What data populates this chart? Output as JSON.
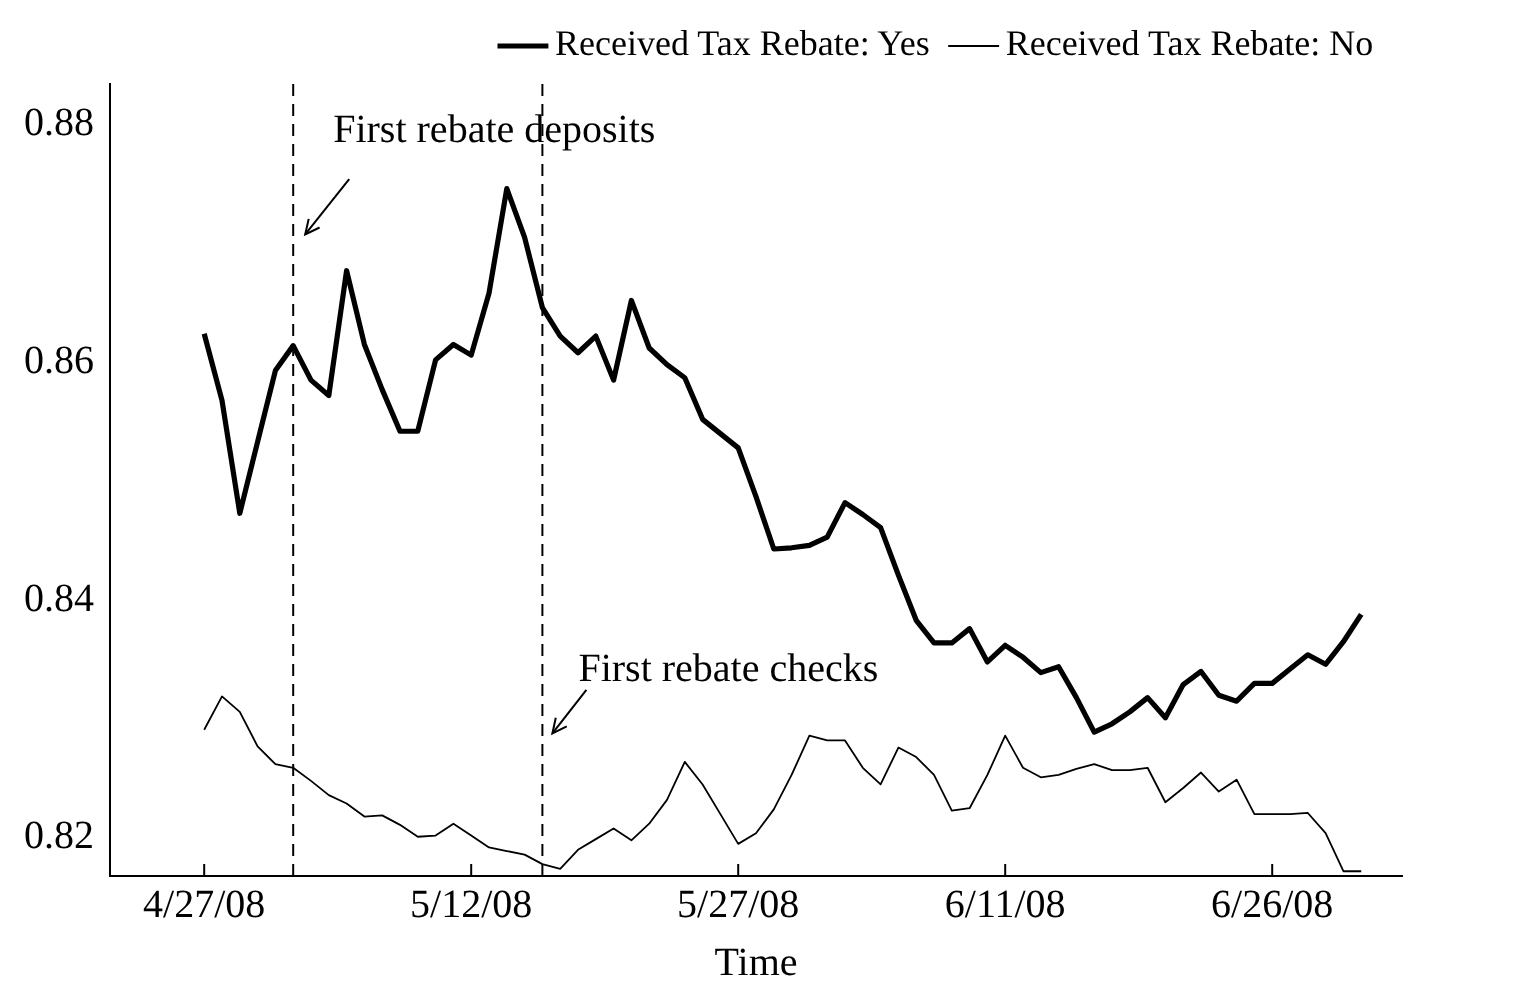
{
  "chart_data": {
    "type": "line",
    "xlabel": "Time",
    "x": [
      "2008-04-27",
      "2008-04-28",
      "2008-04-29",
      "2008-04-30",
      "2008-05-01",
      "2008-05-02",
      "2008-05-03",
      "2008-05-04",
      "2008-05-05",
      "2008-05-06",
      "2008-05-07",
      "2008-05-08",
      "2008-05-09",
      "2008-05-10",
      "2008-05-11",
      "2008-05-12",
      "2008-05-13",
      "2008-05-14",
      "2008-05-15",
      "2008-05-16",
      "2008-05-17",
      "2008-05-18",
      "2008-05-19",
      "2008-05-20",
      "2008-05-21",
      "2008-05-22",
      "2008-05-23",
      "2008-05-24",
      "2008-05-25",
      "2008-05-26",
      "2008-05-27",
      "2008-05-28",
      "2008-05-29",
      "2008-05-30",
      "2008-05-31",
      "2008-06-01",
      "2008-06-02",
      "2008-06-03",
      "2008-06-04",
      "2008-06-05",
      "2008-06-06",
      "2008-06-07",
      "2008-06-08",
      "2008-06-09",
      "2008-06-10",
      "2008-06-11",
      "2008-06-12",
      "2008-06-13",
      "2008-06-14",
      "2008-06-15",
      "2008-06-16",
      "2008-06-17",
      "2008-06-18",
      "2008-06-19",
      "2008-06-20",
      "2008-06-21",
      "2008-06-22",
      "2008-06-23",
      "2008-06-24",
      "2008-06-25",
      "2008-06-26",
      "2008-06-27",
      "2008-06-28",
      "2008-06-29",
      "2008-06-30",
      "2008-07-01"
    ],
    "series": [
      {
        "name": "Received Tax Rebate: Yes",
        "color": "#000000",
        "values": [
          0.8624,
          0.8568,
          0.8473,
          0.8533,
          0.8593,
          0.8614,
          0.8585,
          0.8572,
          0.8677,
          0.8615,
          0.8577,
          0.8542,
          0.8542,
          0.8602,
          0.8615,
          0.8606,
          0.8658,
          0.8746,
          0.8705,
          0.8646,
          0.8622,
          0.8608,
          0.8622,
          0.8585,
          0.8652,
          0.8612,
          0.8598,
          0.8587,
          0.8552,
          0.854,
          0.8528,
          0.8487,
          0.8443,
          0.8444,
          0.8446,
          0.8453,
          0.8482,
          0.8472,
          0.8461,
          0.8421,
          0.8383,
          0.8364,
          0.8364,
          0.8376,
          0.8348,
          0.8362,
          0.8352,
          0.8339,
          0.8344,
          0.8318,
          0.8289,
          0.8296,
          0.8306,
          0.8318,
          0.8301,
          0.8329,
          0.834,
          0.832,
          0.8315,
          0.833,
          0.833,
          0.8342,
          0.8354,
          0.8346,
          0.8365,
          0.8388
        ]
      },
      {
        "name": "Received Tax Rebate: No",
        "color": "#000000",
        "values": [
          0.8291,
          0.8319,
          0.8306,
          0.8277,
          0.8262,
          0.8259,
          0.8248,
          0.8236,
          0.8229,
          0.8218,
          0.8219,
          0.8211,
          0.8201,
          0.8202,
          0.8212,
          0.8202,
          0.8192,
          0.8189,
          0.8186,
          0.8178,
          0.8174,
          0.819,
          0.8199,
          0.8208,
          0.8198,
          0.8212,
          0.8232,
          0.8264,
          0.8245,
          0.822,
          0.8195,
          0.8204,
          0.8224,
          0.8253,
          0.8286,
          0.8282,
          0.8282,
          0.8259,
          0.8245,
          0.8276,
          0.8268,
          0.8253,
          0.8223,
          0.8225,
          0.8253,
          0.8286,
          0.8259,
          0.8251,
          0.8253,
          0.8258,
          0.8262,
          0.8257,
          0.8257,
          0.8259,
          0.823,
          0.8242,
          0.8255,
          0.8239,
          0.8249,
          0.822,
          0.822,
          0.822,
          0.8221,
          0.8204,
          0.8172,
          0.8172
        ]
      }
    ],
    "xlim": [
      "2008-04-21T17:00",
      "2008-07-03T07:00"
    ],
    "xticks": [
      {
        "value": "2008-04-27",
        "label": "4/27/08"
      },
      {
        "value": "2008-05-12",
        "label": "5/12/08"
      },
      {
        "value": "2008-05-27",
        "label": "5/27/08"
      },
      {
        "value": "2008-06-11",
        "label": "6/11/08"
      },
      {
        "value": "2008-06-26",
        "label": "6/26/08"
      }
    ],
    "ylim": [
      0.8168,
      0.8834
    ],
    "yticks": [
      {
        "value": 0.82,
        "label": "0.82"
      },
      {
        "value": 0.84,
        "label": "0.84"
      },
      {
        "value": 0.86,
        "label": "0.86"
      },
      {
        "value": 0.88,
        "label": "0.88"
      }
    ],
    "ref_lines": [
      {
        "axis": "x",
        "value": "2008-05-02",
        "label": "First rebate deposits",
        "color": "#000000",
        "line_style": "dashed"
      },
      {
        "axis": "x",
        "value": "2008-05-16",
        "label": "First rebate checks",
        "color": "#000000",
        "line_style": "dashed"
      }
    ],
    "grid": false,
    "legend": "top right",
    "marker": "none",
    "line_style": "solid"
  }
}
